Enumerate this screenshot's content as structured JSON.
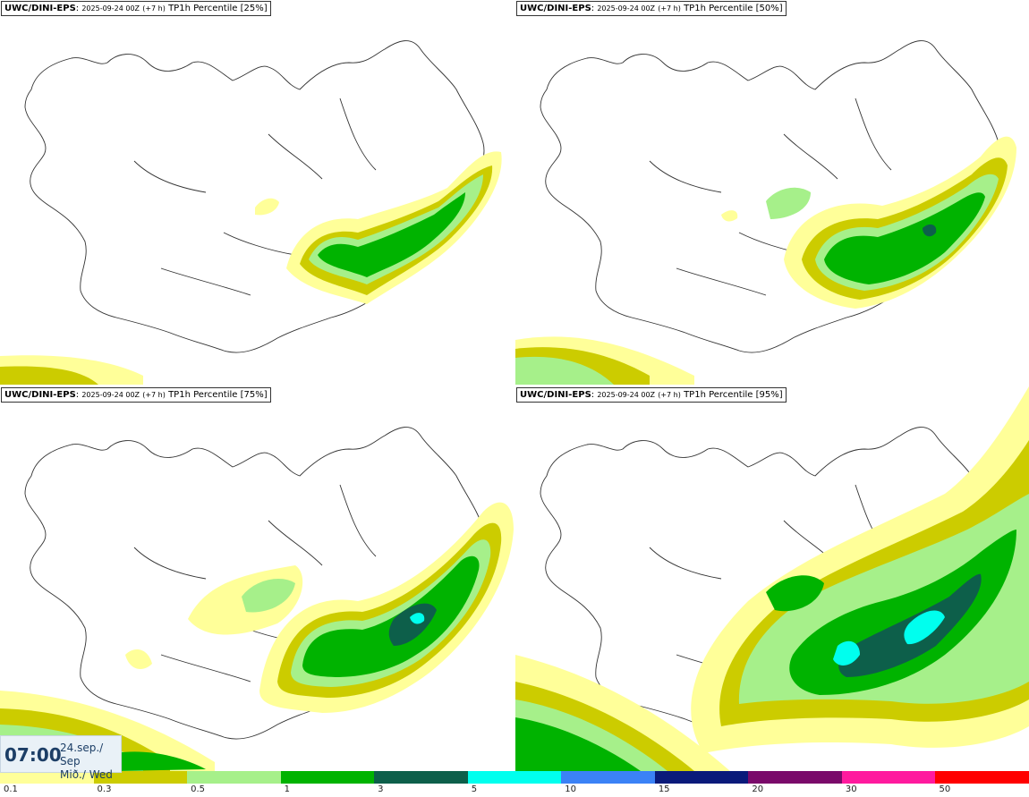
{
  "panels": [
    {
      "model": "UWC/DINI-EPS",
      "run": "2025-09-24 00Z",
      "lead": "(+7 h)",
      "field": "TP1h Percentile [25%]"
    },
    {
      "model": "UWC/DINI-EPS",
      "run": "2025-09-24 00Z",
      "lead": "(+7 h)",
      "field": "TP1h Percentile [50%]"
    },
    {
      "model": "UWC/DINI-EPS",
      "run": "2025-09-24 00Z",
      "lead": "(+7 h)",
      "field": "TP1h Percentile [75%]"
    },
    {
      "model": "UWC/DINI-EPS",
      "run": "2025-09-24 00Z",
      "lead": "(+7 h)",
      "field": "TP1h Percentile [95%]"
    }
  ],
  "valid_time": {
    "time": "07:00",
    "date_line1": "24.sep./ Sep",
    "date_line2": "Mið./ Wed"
  },
  "legend": {
    "labels": [
      "0.1",
      "0.3",
      "0.5",
      "1",
      "3",
      "5",
      "10",
      "15",
      "20",
      "30",
      "50"
    ],
    "colors": [
      "#ffff99",
      "#cccc00",
      "#a6f08a",
      "#00b300",
      "#0d5f4a",
      "#00ffee",
      "#3b82f6",
      "#0a1a7a",
      "#7a0a6a",
      "#ff1a9e",
      "#ff0000"
    ]
  }
}
